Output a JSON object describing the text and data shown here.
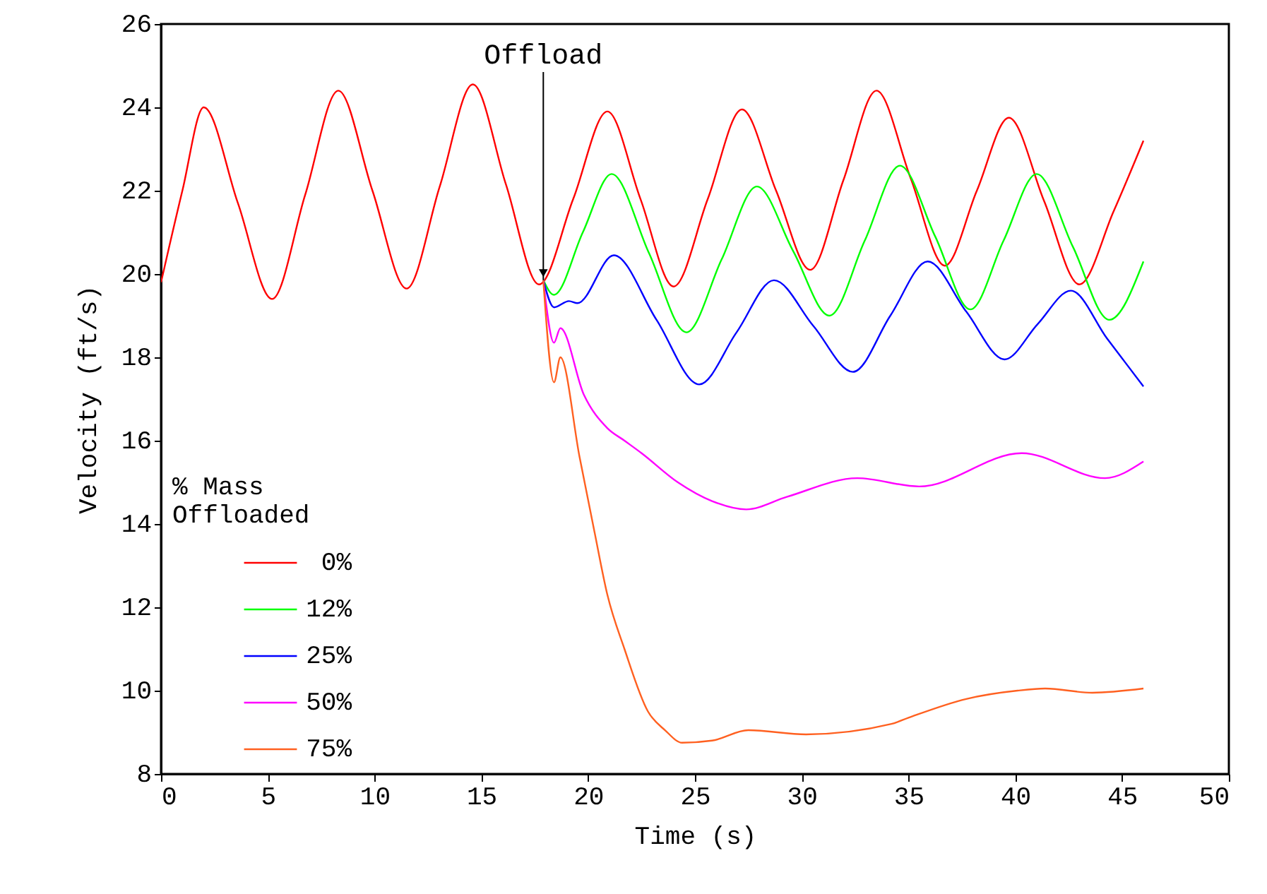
{
  "chart_data": {
    "type": "line",
    "xlabel": "Time (s)",
    "ylabel": "Velocity (ft/s)",
    "legend_title": "% Mass Offloaded",
    "legend": "bottom left",
    "xlim": [
      0,
      50
    ],
    "xticks": [
      0,
      5,
      10,
      15,
      20,
      25,
      30,
      35,
      40,
      45,
      50
    ],
    "ylim": [
      8,
      26
    ],
    "yticks": [
      8,
      10,
      12,
      14,
      16,
      18,
      20,
      22,
      24,
      26
    ],
    "annotations": [
      {
        "text": "Offload",
        "x": 17.9,
        "y": 19.85
      }
    ],
    "series": [
      {
        "name": "0%",
        "color": "#ff0000",
        "x": [
          0,
          1,
          2,
          3.6,
          5.2,
          6.75,
          8.3,
          9.9,
          11.5,
          13.05,
          14.6,
          16.15,
          17.7,
          19.3,
          20.9,
          22.45,
          24.0,
          25.6,
          27.2,
          28.8,
          30.4,
          31.95,
          33.5,
          35.1,
          36.7,
          38.2,
          39.7,
          41.35,
          43.0,
          44.6,
          46.0
        ],
        "values": [
          19.8,
          22.0,
          24.0,
          21.7,
          19.4,
          21.9,
          24.4,
          22.0,
          19.65,
          22.1,
          24.55,
          22.15,
          19.75,
          21.8,
          23.9,
          21.8,
          19.7,
          21.8,
          23.95,
          22.0,
          20.1,
          22.25,
          24.4,
          22.3,
          20.2,
          22.0,
          23.75,
          21.75,
          19.75,
          21.5,
          23.2
        ]
      },
      {
        "name": "12%",
        "color": "#00ff00",
        "x": [
          17.9,
          18.4,
          19.75,
          21.1,
          22.85,
          24.6,
          26.25,
          27.9,
          29.6,
          31.3,
          32.95,
          34.6,
          36.25,
          37.9,
          39.45,
          41.0,
          42.7,
          44.4,
          46.0
        ],
        "values": [
          19.85,
          19.5,
          21.0,
          22.4,
          20.5,
          18.6,
          20.35,
          22.1,
          20.55,
          19.0,
          20.8,
          22.6,
          20.9,
          19.15,
          20.8,
          22.4,
          20.65,
          18.9,
          20.3
        ]
      },
      {
        "name": "25%",
        "color": "#0000ff",
        "x": [
          17.9,
          18.4,
          19.1,
          19.5,
          21.2,
          23.2,
          25.2,
          26.95,
          28.7,
          30.55,
          32.4,
          34.15,
          35.9,
          37.7,
          39.5,
          41.05,
          42.6,
          44.3,
          46.0
        ],
        "values": [
          19.85,
          19.2,
          19.35,
          19.3,
          20.45,
          18.9,
          17.35,
          18.6,
          19.85,
          18.75,
          17.65,
          19.0,
          20.3,
          19.1,
          17.95,
          18.8,
          19.6,
          18.45,
          17.3
        ]
      },
      {
        "name": "50%",
        "color": "#ff00ff",
        "x": [
          17.9,
          18.4,
          18.7,
          19.8,
          20.9,
          21.7,
          22.5,
          24.2,
          25.8,
          27.4,
          29.3,
          32.6,
          35.5,
          40.3,
          44.2,
          46.0
        ],
        "values": [
          19.85,
          18.35,
          18.7,
          17.1,
          16.3,
          16.0,
          15.7,
          15.0,
          14.55,
          14.35,
          14.65,
          15.1,
          14.9,
          15.7,
          15.1,
          15.5
        ]
      },
      {
        "name": "75%",
        "color": "#ff6020",
        "x": [
          17.9,
          18.4,
          18.7,
          19.6,
          20.3,
          20.9,
          21.7,
          22.8,
          23.6,
          24.4,
          25.8,
          27.5,
          30.2,
          34.2,
          35.0,
          37.7,
          40.1,
          41.4,
          43.6,
          46.0
        ],
        "values": [
          19.85,
          17.4,
          18.0,
          15.6,
          13.8,
          12.3,
          11.0,
          9.5,
          9.05,
          8.75,
          8.8,
          9.05,
          8.95,
          9.2,
          9.35,
          9.8,
          10.0,
          10.05,
          9.95,
          10.05
        ]
      }
    ]
  }
}
